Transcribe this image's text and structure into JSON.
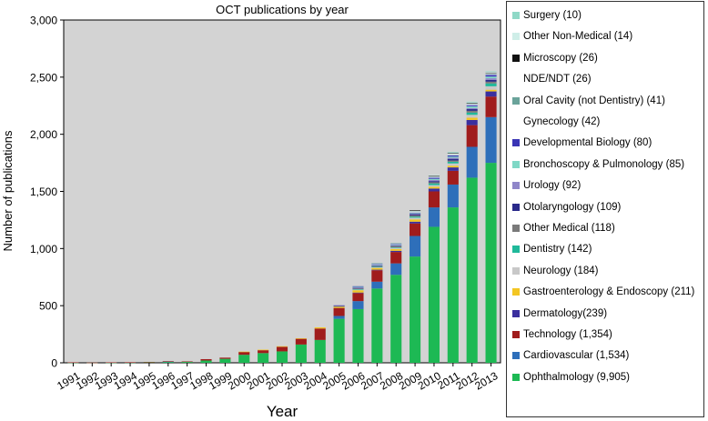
{
  "chart_data": {
    "type": "bar",
    "stacked": true,
    "title": "OCT publications by year",
    "xlabel": "Year",
    "ylabel": "Number of publications",
    "ylim": [
      0,
      3000
    ],
    "yticks": [
      "0",
      "500",
      "1,000",
      "1,500",
      "2,000",
      "2,500",
      "3,000"
    ],
    "ytick_values": [
      0,
      500,
      1000,
      1500,
      2000,
      2500,
      3000
    ],
    "grid": false,
    "plot_background": "#d3d3d3",
    "legend_position": "right",
    "categories": [
      "1991",
      "1992",
      "1993",
      "1994",
      "1995",
      "1996",
      "1997",
      "1998",
      "1999",
      "2000",
      "2001",
      "2002",
      "2003",
      "2004",
      "2005",
      "2006",
      "2007",
      "2008",
      "2009",
      "2010",
      "2011",
      "2012",
      "2013"
    ],
    "series": [
      {
        "name": "Ophthalmology (9,905)",
        "color": "#1db954",
        "values": [
          2,
          1,
          2,
          3,
          5,
          8,
          8,
          20,
          35,
          70,
          85,
          100,
          160,
          200,
          385,
          470,
          650,
          770,
          930,
          1190,
          1360,
          1620,
          1750
        ]
      },
      {
        "name": "Cardiovascular (1,534)",
        "color": "#2e6fba",
        "values": [
          0,
          0,
          0,
          0,
          0,
          3,
          0,
          0,
          0,
          0,
          0,
          0,
          0,
          0,
          25,
          70,
          60,
          100,
          180,
          170,
          200,
          270,
          400
        ]
      },
      {
        "name": "Technology (1,354)",
        "color": "#a01c1c",
        "values": [
          2,
          1,
          2,
          2,
          3,
          3,
          4,
          12,
          10,
          25,
          25,
          40,
          50,
          100,
          70,
          70,
          100,
          100,
          110,
          140,
          120,
          190,
          180
        ]
      },
      {
        "name": "Dermatology(239)",
        "color": "#3b2f9e",
        "values": [
          0,
          0,
          0,
          0,
          0,
          0,
          0,
          0,
          0,
          0,
          0,
          0,
          0,
          0,
          0,
          5,
          5,
          10,
          15,
          25,
          30,
          45,
          45
        ]
      },
      {
        "name": "Gastroenterology & Endoscopy (211)",
        "color": "#f3c623",
        "values": [
          0,
          0,
          0,
          0,
          0,
          0,
          0,
          0,
          0,
          3,
          5,
          5,
          5,
          10,
          10,
          20,
          15,
          15,
          20,
          15,
          15,
          20,
          15
        ]
      },
      {
        "name": "Neurology (184)",
        "color": "#c8c8c8",
        "values": [
          0,
          0,
          0,
          0,
          0,
          0,
          0,
          0,
          0,
          0,
          0,
          0,
          0,
          0,
          0,
          5,
          5,
          10,
          15,
          15,
          20,
          25,
          30
        ]
      },
      {
        "name": "Dentistry (142)",
        "color": "#20b99a",
        "values": [
          0,
          0,
          0,
          0,
          0,
          0,
          0,
          0,
          0,
          0,
          0,
          0,
          0,
          0,
          0,
          5,
          5,
          5,
          10,
          15,
          15,
          20,
          25
        ]
      },
      {
        "name": "Other Medical (118)",
        "color": "#7a7a7a",
        "values": [
          0,
          0,
          0,
          0,
          0,
          0,
          0,
          0,
          0,
          0,
          0,
          0,
          0,
          0,
          5,
          5,
          5,
          10,
          10,
          10,
          10,
          15,
          15
        ]
      },
      {
        "name": "Otolaryngology (109)",
        "color": "#2a2a8a",
        "values": [
          0,
          0,
          0,
          0,
          0,
          0,
          0,
          0,
          0,
          0,
          0,
          0,
          0,
          0,
          5,
          5,
          5,
          5,
          10,
          10,
          15,
          15,
          15
        ]
      },
      {
        "name": "Urology (92)",
        "color": "#8f86c9",
        "values": [
          0,
          0,
          0,
          0,
          0,
          0,
          0,
          0,
          0,
          0,
          0,
          0,
          0,
          0,
          5,
          5,
          5,
          5,
          5,
          10,
          10,
          10,
          15
        ]
      },
      {
        "name": "Bronchoscopy & Pulmonology (85)",
        "color": "#7fd8c6",
        "values": [
          0,
          0,
          0,
          0,
          0,
          0,
          0,
          0,
          0,
          0,
          0,
          0,
          0,
          0,
          0,
          5,
          5,
          5,
          5,
          10,
          10,
          15,
          15
        ]
      },
      {
        "name": "Developmental Biology (80)",
        "color": "#3a35b5",
        "values": [
          0,
          0,
          0,
          0,
          0,
          0,
          0,
          0,
          0,
          0,
          0,
          0,
          0,
          0,
          0,
          5,
          5,
          5,
          5,
          10,
          10,
          10,
          15
        ]
      },
      {
        "name": "Gynecology (42)",
        "color": "#ffffff",
        "values": [
          0,
          0,
          0,
          0,
          0,
          0,
          0,
          0,
          0,
          0,
          0,
          0,
          0,
          0,
          0,
          0,
          5,
          5,
          5,
          5,
          5,
          5,
          5
        ]
      },
      {
        "name": "Oral Cavity (not Dentistry) (41)",
        "color": "#6aa39a",
        "values": [
          0,
          0,
          0,
          0,
          0,
          0,
          0,
          0,
          0,
          0,
          0,
          0,
          0,
          0,
          0,
          0,
          5,
          5,
          5,
          5,
          5,
          5,
          5
        ]
      },
      {
        "name": "NDE/NDT (26)",
        "color": "#ffffff",
        "values": [
          0,
          0,
          0,
          0,
          0,
          0,
          0,
          0,
          0,
          0,
          0,
          0,
          0,
          0,
          0,
          0,
          0,
          0,
          5,
          5,
          5,
          5,
          5
        ]
      },
      {
        "name": "Microscopy (26)",
        "color": "#111111",
        "values": [
          0,
          0,
          0,
          0,
          0,
          0,
          0,
          0,
          0,
          0,
          0,
          0,
          0,
          0,
          0,
          0,
          0,
          0,
          5,
          5,
          5,
          5,
          5
        ]
      },
      {
        "name": "Other Non-Medical (14)",
        "color": "#cfeee8",
        "values": [
          0,
          0,
          0,
          0,
          0,
          0,
          0,
          0,
          0,
          0,
          0,
          0,
          0,
          0,
          0,
          0,
          0,
          0,
          0,
          5,
          5,
          5,
          5
        ]
      },
      {
        "name": "Surgery (10)",
        "color": "#8fd9c7",
        "values": [
          0,
          0,
          0,
          0,
          0,
          0,
          0,
          0,
          0,
          0,
          0,
          0,
          0,
          0,
          0,
          0,
          0,
          0,
          0,
          0,
          5,
          5,
          5
        ]
      }
    ]
  }
}
